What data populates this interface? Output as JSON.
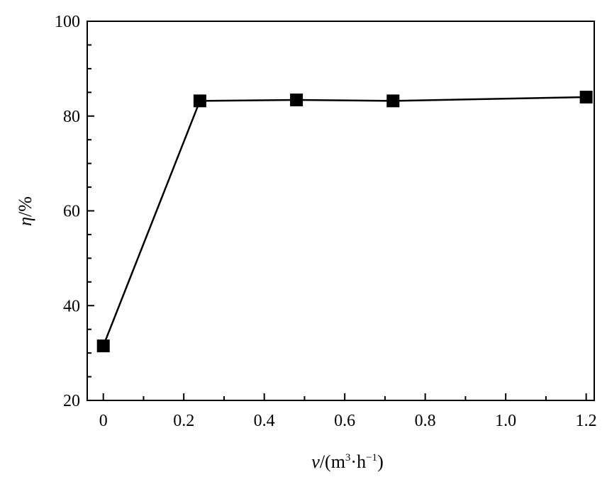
{
  "chart_data": {
    "type": "line",
    "title": "",
    "xlabel": {
      "var": "v",
      "open": "/(m",
      "sup1": "3",
      "mid": "·h",
      "sup2": "−1",
      "close": ")"
    },
    "ylabel": {
      "var": "η",
      "unit": "/%"
    },
    "xlim": [
      -0.04,
      1.22
    ],
    "ylim": [
      20,
      100
    ],
    "x_ticks": [
      0,
      0.2,
      0.4,
      0.6,
      0.8,
      1.0,
      1.2
    ],
    "x_tick_labels": [
      "0",
      "0.2",
      "0.4",
      "0.6",
      "0.8",
      "1.0",
      "1.2"
    ],
    "y_ticks": [
      20,
      40,
      60,
      80,
      100
    ],
    "y_tick_labels": [
      "20",
      "40",
      "60",
      "80",
      "100"
    ],
    "series": [
      {
        "marker": "square",
        "color": "#000000",
        "x": [
          0,
          0.24,
          0.48,
          0.72,
          1.2
        ],
        "y": [
          31.5,
          83.2,
          83.4,
          83.2,
          84.0
        ]
      }
    ]
  }
}
